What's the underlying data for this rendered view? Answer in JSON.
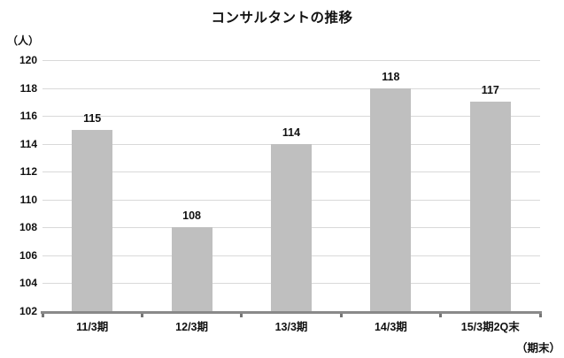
{
  "chart_data": {
    "type": "bar",
    "title": "コンサルタントの推移",
    "y_unit_label": "（人）",
    "x_note": "（期末）",
    "categories": [
      "11/3期",
      "12/3期",
      "13/3期",
      "14/3期",
      "15/3期2Q末"
    ],
    "values": [
      115,
      108,
      114,
      118,
      117
    ],
    "ylim": [
      102,
      120
    ],
    "y_tick_step": 2,
    "grid": true,
    "legend": "none",
    "colors": {
      "bar": "#bfbfbf",
      "gridline": "#d9d9d9",
      "axis_line": "#898989",
      "axis_tick": "#757575",
      "text": "#111111"
    }
  }
}
